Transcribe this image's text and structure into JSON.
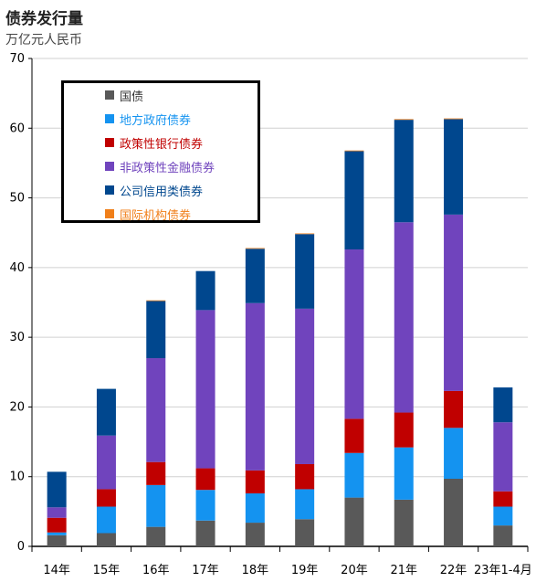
{
  "title": "债券发行量",
  "subtitle": "万亿元人民币",
  "chart_data": {
    "type": "bar",
    "stacked": true,
    "title": "债券发行量",
    "subtitle": "万亿元人民币",
    "categories": [
      "14年",
      "15年",
      "16年",
      "17年",
      "18年",
      "19年",
      "20年",
      "21年",
      "22年",
      "23年1-4月"
    ],
    "ylim": [
      0,
      70
    ],
    "yticks": [
      0,
      10,
      20,
      30,
      40,
      50,
      60,
      70
    ],
    "grid": true,
    "legend_position": "top-left",
    "series": [
      {
        "name": "国债",
        "color": "#595959",
        "values": [
          1.6,
          1.9,
          2.8,
          3.7,
          3.4,
          3.9,
          7.0,
          6.7,
          9.7,
          3.0
        ]
      },
      {
        "name": "地方政府债券",
        "color": "#1493F0",
        "values": [
          0.4,
          3.8,
          6.0,
          4.4,
          4.2,
          4.3,
          6.4,
          7.5,
          7.3,
          2.7
        ]
      },
      {
        "name": "政策性银行债券",
        "color": "#C00000",
        "values": [
          2.1,
          2.5,
          3.3,
          3.1,
          3.3,
          3.6,
          4.9,
          5.0,
          5.3,
          2.2
        ]
      },
      {
        "name": "非政策性金融债券",
        "color": "#7044BD",
        "values": [
          1.5,
          7.7,
          14.9,
          22.7,
          24.0,
          22.3,
          24.3,
          27.3,
          25.3,
          9.9
        ]
      },
      {
        "name": "公司信用类债券",
        "color": "#00478E",
        "values": [
          5.1,
          6.7,
          8.2,
          5.6,
          7.8,
          10.7,
          14.1,
          14.7,
          13.7,
          5.0
        ]
      },
      {
        "name": "国际机构债券",
        "color": "#F07F1A",
        "values": [
          0.0,
          0.0,
          0.1,
          0.0,
          0.1,
          0.1,
          0.1,
          0.1,
          0.1,
          0.0
        ]
      }
    ]
  }
}
